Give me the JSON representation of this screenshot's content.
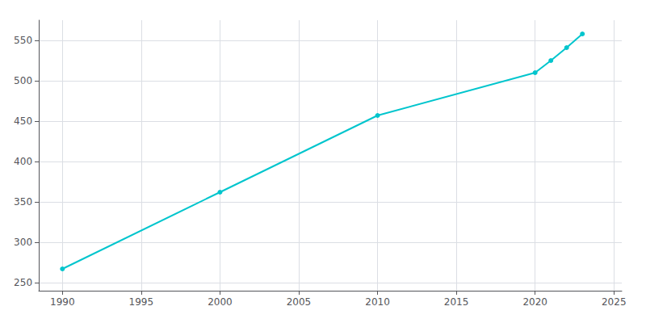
{
  "chart_data": {
    "type": "line",
    "x": [
      1990,
      2000,
      2010,
      2020,
      2021,
      2022,
      2023
    ],
    "values": [
      267,
      362,
      457,
      510,
      525,
      541,
      558
    ],
    "color": "#00c5cd",
    "marker": "circle",
    "xlim": [
      1988.5,
      2025.5
    ],
    "ylim": [
      240,
      575
    ],
    "xticks": [
      1990,
      1995,
      2000,
      2005,
      2010,
      2015,
      2020,
      2025
    ],
    "yticks": [
      250,
      300,
      350,
      400,
      450,
      500,
      550
    ],
    "grid": true
  }
}
